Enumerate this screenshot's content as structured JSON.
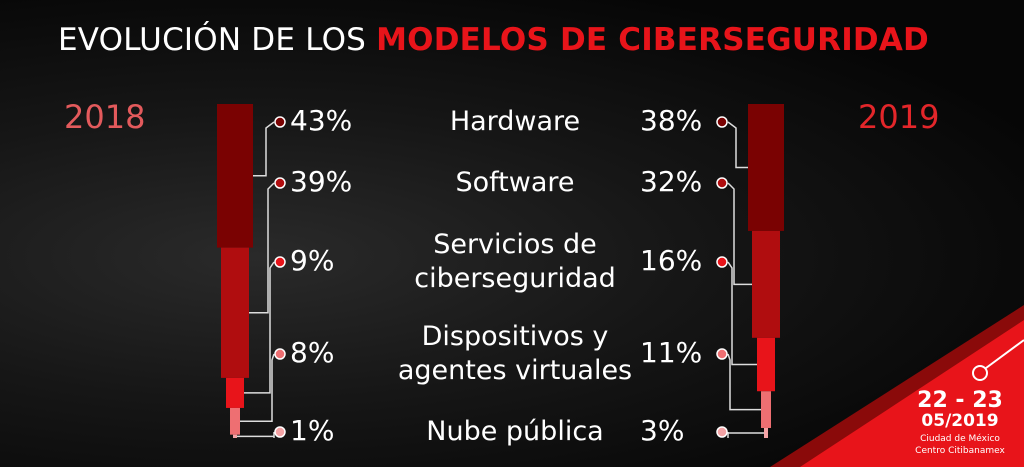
{
  "title": {
    "part1": "EVOLUCIÓN DE LOS ",
    "part2": "MODELOS DE CIBERSEGURIDAD"
  },
  "event": {
    "days": "22 - 23",
    "month": "05/2019",
    "city": "Ciudad de México",
    "venue": "Centro Citibanamex"
  },
  "colors": {
    "accent": "#e8141a",
    "segments": [
      "#7a0202",
      "#b00d0f",
      "#e8141a",
      "#ee6f72",
      "#f4a3a5"
    ]
  },
  "chart_data": {
    "type": "bar",
    "stacked": true,
    "unit": "%",
    "categories": [
      "Hardware",
      "Software",
      "Servicios de ciberseguridad",
      "Dispositivos y agentes virtuales",
      "Nube pública"
    ],
    "category_lines": [
      [
        "Hardware"
      ],
      [
        "Software"
      ],
      [
        "Servicios de",
        "ciberseguridad"
      ],
      [
        "Dispositivos y",
        "agentes virtuales"
      ],
      [
        "Nube pública"
      ]
    ],
    "series": [
      {
        "name": "2018",
        "values": [
          43,
          39,
          9,
          8,
          1
        ],
        "labels": [
          "43%",
          "39%",
          "9%",
          "8%",
          "1%"
        ]
      },
      {
        "name": "2019",
        "values": [
          38,
          32,
          16,
          11,
          3
        ],
        "labels": [
          "38%",
          "32%",
          "16%",
          "11%",
          "3%"
        ]
      }
    ]
  }
}
